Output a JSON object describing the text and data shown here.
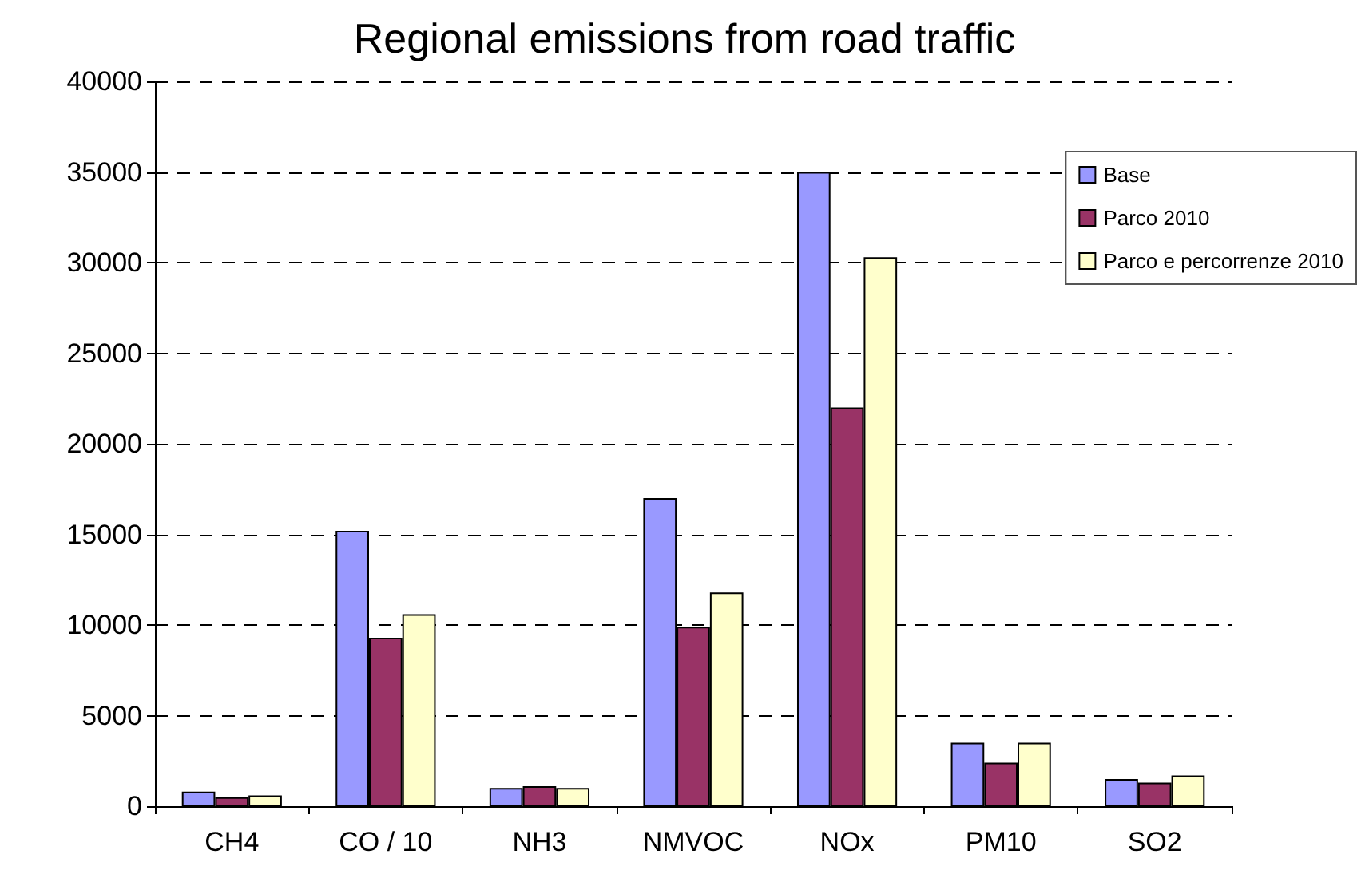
{
  "chart_data": {
    "type": "bar",
    "title": "Regional emissions from road traffic",
    "categories": [
      "CH4",
      "CO / 10",
      "NH3",
      "NMVOC",
      "NOx",
      "PM10",
      "SO2"
    ],
    "series": [
      {
        "name": "Base",
        "color": "#9999ff",
        "values": [
          800,
          15200,
          1000,
          17000,
          35000,
          3500,
          1500
        ]
      },
      {
        "name": "Parco 2010",
        "color": "#993366",
        "values": [
          500,
          9300,
          1100,
          9900,
          22000,
          2400,
          1300
        ]
      },
      {
        "name": "Parco e percorrenze 2010",
        "color": "#ffffcc",
        "values": [
          600,
          10600,
          1000,
          11800,
          30300,
          3500,
          1700
        ]
      }
    ],
    "ylim": [
      0,
      40000
    ],
    "yticks": [
      0,
      5000,
      10000,
      15000,
      20000,
      25000,
      30000,
      35000,
      40000
    ],
    "grid": "y",
    "legend": "right"
  }
}
